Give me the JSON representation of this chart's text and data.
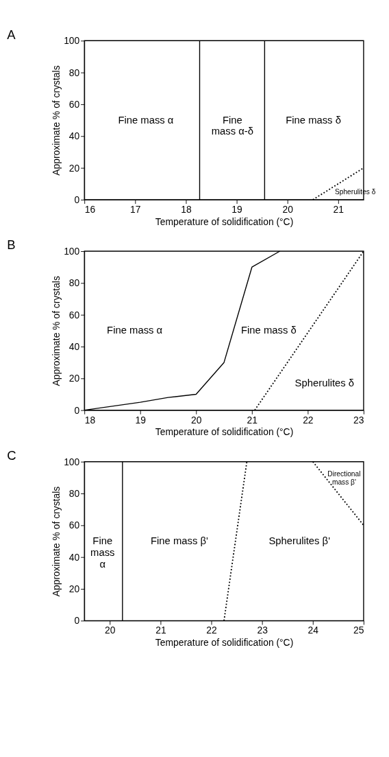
{
  "chart_data": [
    {
      "type": "line",
      "title": "A",
      "xlabel": "Temperature of solidification (°C)",
      "ylabel": "Approximate % of crystals",
      "xlim": [
        16,
        21.5
      ],
      "xticks": [
        16,
        17,
        18,
        19,
        20,
        21
      ],
      "ylim": [
        0,
        100
      ],
      "yticks": [
        0,
        20,
        40,
        60,
        80,
        100
      ],
      "grid": false,
      "marker": "none",
      "series": [
        {
          "color": "#000000",
          "line_style": "dotted",
          "x": [
            20.5,
            21.5
          ],
          "values": [
            0,
            20
          ]
        }
      ],
      "ref_lines": [
        {
          "axis": "x",
          "value": 18.27,
          "color": "#000000",
          "line_style": "solid"
        },
        {
          "axis": "x",
          "value": 19.55,
          "color": "#000000",
          "line_style": "solid"
        }
      ],
      "annotations": [
        "Fine mass α",
        "Fine\nmass α-δ",
        "Fine mass δ",
        "Spherulites δ"
      ]
    },
    {
      "type": "line",
      "title": "B",
      "xlabel": "Temperature of solidification (°C)",
      "ylabel": "Approximate % of crystals",
      "xlim": [
        18,
        23
      ],
      "xticks": [
        18,
        19,
        20,
        21,
        22,
        23
      ],
      "ylim": [
        0,
        100
      ],
      "yticks": [
        0,
        20,
        40,
        60,
        80,
        100
      ],
      "grid": false,
      "marker": "none",
      "series": [
        {
          "color": "#000000",
          "line_style": "solid",
          "x": [
            18,
            19,
            19.5,
            20,
            20.5,
            21,
            21.5
          ],
          "values": [
            0,
            5,
            8,
            10,
            30,
            90,
            100
          ]
        },
        {
          "color": "#000000",
          "line_style": "dotted",
          "x": [
            21.05,
            23
          ],
          "values": [
            0,
            100
          ]
        }
      ],
      "annotations": [
        "Fine mass α",
        "Fine mass δ",
        "Spherulites δ"
      ]
    },
    {
      "type": "line",
      "title": "C",
      "xlabel": "Temperature of solidification (°C)",
      "ylabel": "Approximate % of crystals",
      "xlim": [
        19.5,
        25
      ],
      "xticks": [
        20,
        21,
        22,
        23,
        24,
        25
      ],
      "ylim": [
        0,
        100
      ],
      "yticks": [
        0,
        20,
        40,
        60,
        80,
        100
      ],
      "grid": false,
      "marker": "none",
      "series": [
        {
          "color": "#000000",
          "line_style": "dotted",
          "x": [
            22.25,
            22.7
          ],
          "values": [
            0,
            100
          ]
        },
        {
          "color": "#000000",
          "line_style": "dotted",
          "x": [
            24,
            25
          ],
          "values": [
            100,
            60
          ]
        }
      ],
      "ref_lines": [
        {
          "axis": "x",
          "value": 20.25,
          "color": "#000000",
          "line_style": "solid"
        }
      ],
      "annotations": [
        "Fine\nmass\nα",
        "Fine mass β'",
        "Spherulites β'",
        "Directional\nmass β'"
      ]
    }
  ]
}
